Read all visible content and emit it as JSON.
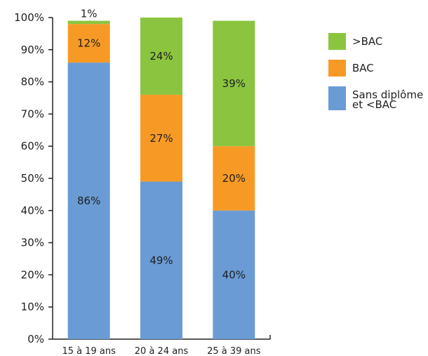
{
  "chart_data": {
    "type": "bar",
    "stacked": true,
    "categories": [
      "15 à 19 ans",
      "20 à 24 ans",
      "25 à 39 ans"
    ],
    "series": [
      {
        "name": "Sans diplôme et <BAC",
        "legend_lines": [
          "Sans diplôme",
          "et <BAC"
        ],
        "values": [
          86,
          49,
          40
        ],
        "labels": [
          "86%",
          "49%",
          "40%"
        ],
        "color": "#6a9bd4"
      },
      {
        "name": "BAC",
        "legend_lines": [
          "BAC"
        ],
        "values": [
          12,
          27,
          20
        ],
        "labels": [
          "12%",
          "27%",
          "20%"
        ],
        "color": "#f79a25"
      },
      {
        "name": ">BAC",
        "legend_lines": [
          ">BAC"
        ],
        "values": [
          1,
          24,
          39
        ],
        "labels": [
          "1%",
          "24%",
          "39%"
        ],
        "color": "#8bc53f"
      }
    ],
    "yticks": [
      "0%",
      "10%",
      "20%",
      "30%",
      "40%",
      "50%",
      "60%",
      "70%",
      "80%",
      "90%",
      "100%"
    ],
    "ylim": [
      0,
      100
    ],
    "grid": false,
    "legend_position": "right"
  }
}
